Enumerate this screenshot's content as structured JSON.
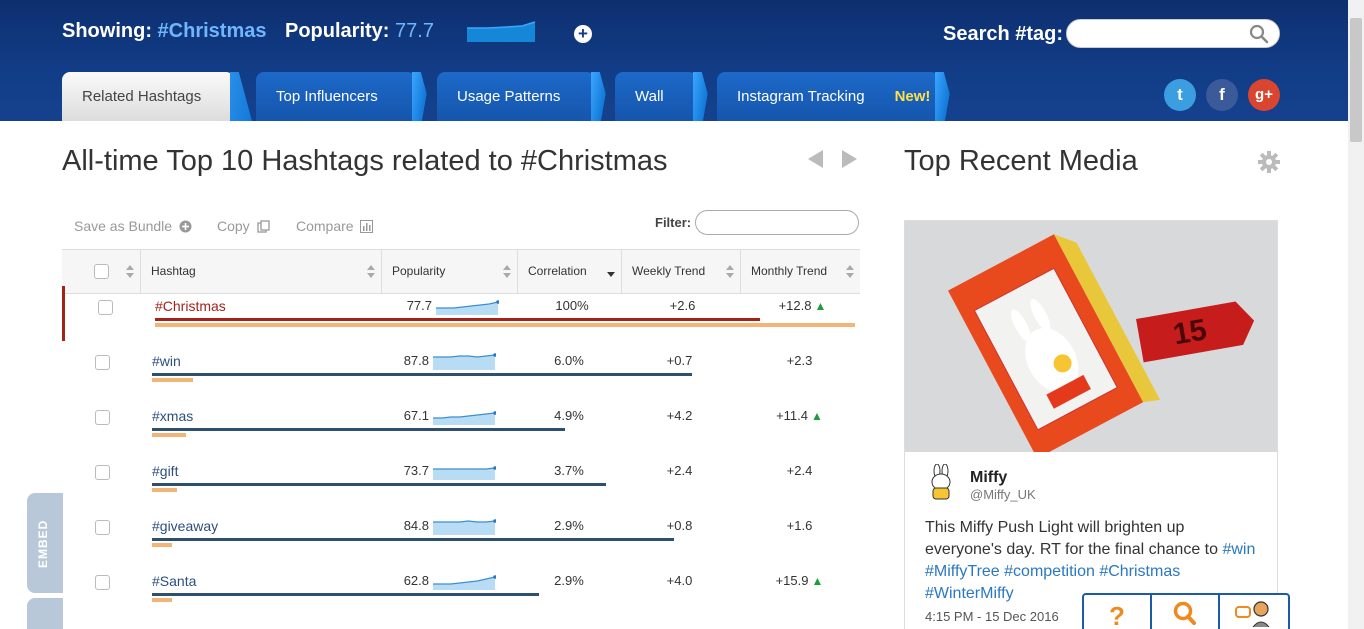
{
  "header": {
    "showing_label": "Showing:",
    "showing_value": "#Christmas",
    "popularity_label": "Popularity:",
    "popularity_value": "77.7",
    "add_icon": "plus-circle-icon",
    "search_label": "Search #tag:",
    "search_value": "",
    "search_placeholder": ""
  },
  "tabs": [
    {
      "label": "Related Hashtags",
      "active": true
    },
    {
      "label": "Top Influencers",
      "active": false
    },
    {
      "label": "Usage Patterns",
      "active": false
    },
    {
      "label": "Wall",
      "active": false
    },
    {
      "label": "Instagram Tracking",
      "badge": "New!",
      "active": false
    }
  ],
  "social": {
    "twitter": "t",
    "facebook": "f",
    "googleplus": "g+"
  },
  "main": {
    "title": "All-time Top 10 Hashtags related to #Christmas",
    "toolbar": {
      "save": "Save as Bundle",
      "copy": "Copy",
      "compare": "Compare"
    },
    "filter_label": "Filter:",
    "filter_value": "",
    "columns": [
      "Hashtag",
      "Popularity",
      "Correlation",
      "Weekly Trend",
      "Monthly Trend"
    ],
    "rows": [
      {
        "tag": "#Christmas",
        "popularity": "77.7",
        "correlation": "100%",
        "weekly": "+2.6",
        "monthly": "+12.8",
        "monthly_up": true,
        "corr_bar": 1.0,
        "pop_bar": 0.777,
        "spark": [
          14,
          14,
          14,
          13,
          12,
          11,
          10,
          8
        ]
      },
      {
        "tag": "#win",
        "popularity": "87.8",
        "correlation": "6.0%",
        "weekly": "+0.7",
        "monthly": "+2.3",
        "monthly_up": false,
        "corr_bar": 0.06,
        "pop_bar": 0.878,
        "spark": [
          8,
          8,
          8,
          7,
          7,
          8,
          7,
          6
        ]
      },
      {
        "tag": "#xmas",
        "popularity": "67.1",
        "correlation": "4.9%",
        "weekly": "+4.2",
        "monthly": "+11.4",
        "monthly_up": true,
        "corr_bar": 0.049,
        "pop_bar": 0.671,
        "spark": [
          14,
          14,
          13,
          13,
          12,
          11,
          10,
          9
        ]
      },
      {
        "tag": "#gift",
        "popularity": "73.7",
        "correlation": "3.7%",
        "weekly": "+2.4",
        "monthly": "+2.4",
        "monthly_up": false,
        "corr_bar": 0.037,
        "pop_bar": 0.737,
        "spark": [
          10,
          10,
          10,
          10,
          10,
          10,
          10,
          9
        ]
      },
      {
        "tag": "#giveaway",
        "popularity": "84.8",
        "correlation": "2.9%",
        "weekly": "+0.8",
        "monthly": "+1.6",
        "monthly_up": false,
        "corr_bar": 0.029,
        "pop_bar": 0.848,
        "spark": [
          8,
          8,
          8,
          8,
          7,
          8,
          8,
          7
        ]
      },
      {
        "tag": "#Santa",
        "popularity": "62.8",
        "correlation": "2.9%",
        "weekly": "+4.0",
        "monthly": "+15.9",
        "monthly_up": true,
        "corr_bar": 0.029,
        "pop_bar": 0.628,
        "spark": [
          15,
          15,
          15,
          14,
          13,
          12,
          10,
          8
        ]
      }
    ],
    "embed_label": "EMBED"
  },
  "media": {
    "title": "Top Recent Media",
    "image_tag_number": "15",
    "user_name": "Miffy",
    "user_handle": "@Miffy_UK",
    "caption_text": "This Miffy Push Light will brighten up everyone's day. RT for the final chance to",
    "caption_tags": [
      "#win",
      "#MiffyTree",
      "#competition",
      "#Christmas",
      "#WinterMiffy"
    ],
    "timestamp": "4:15 PM - 15 Dec 2016"
  },
  "help_bar": {
    "icons": [
      "question-icon",
      "magnifier-icon",
      "chat-agent-icon"
    ]
  },
  "colors": {
    "header_bg": "#123c86",
    "accent_blue": "#6fb6ff",
    "selected_red": "#a3221c",
    "pop_bar": "#f2b477",
    "corr_bar": "#2f4f6e",
    "trend_up": "#1e9d3f",
    "hashtag_link": "#2a78c2"
  }
}
